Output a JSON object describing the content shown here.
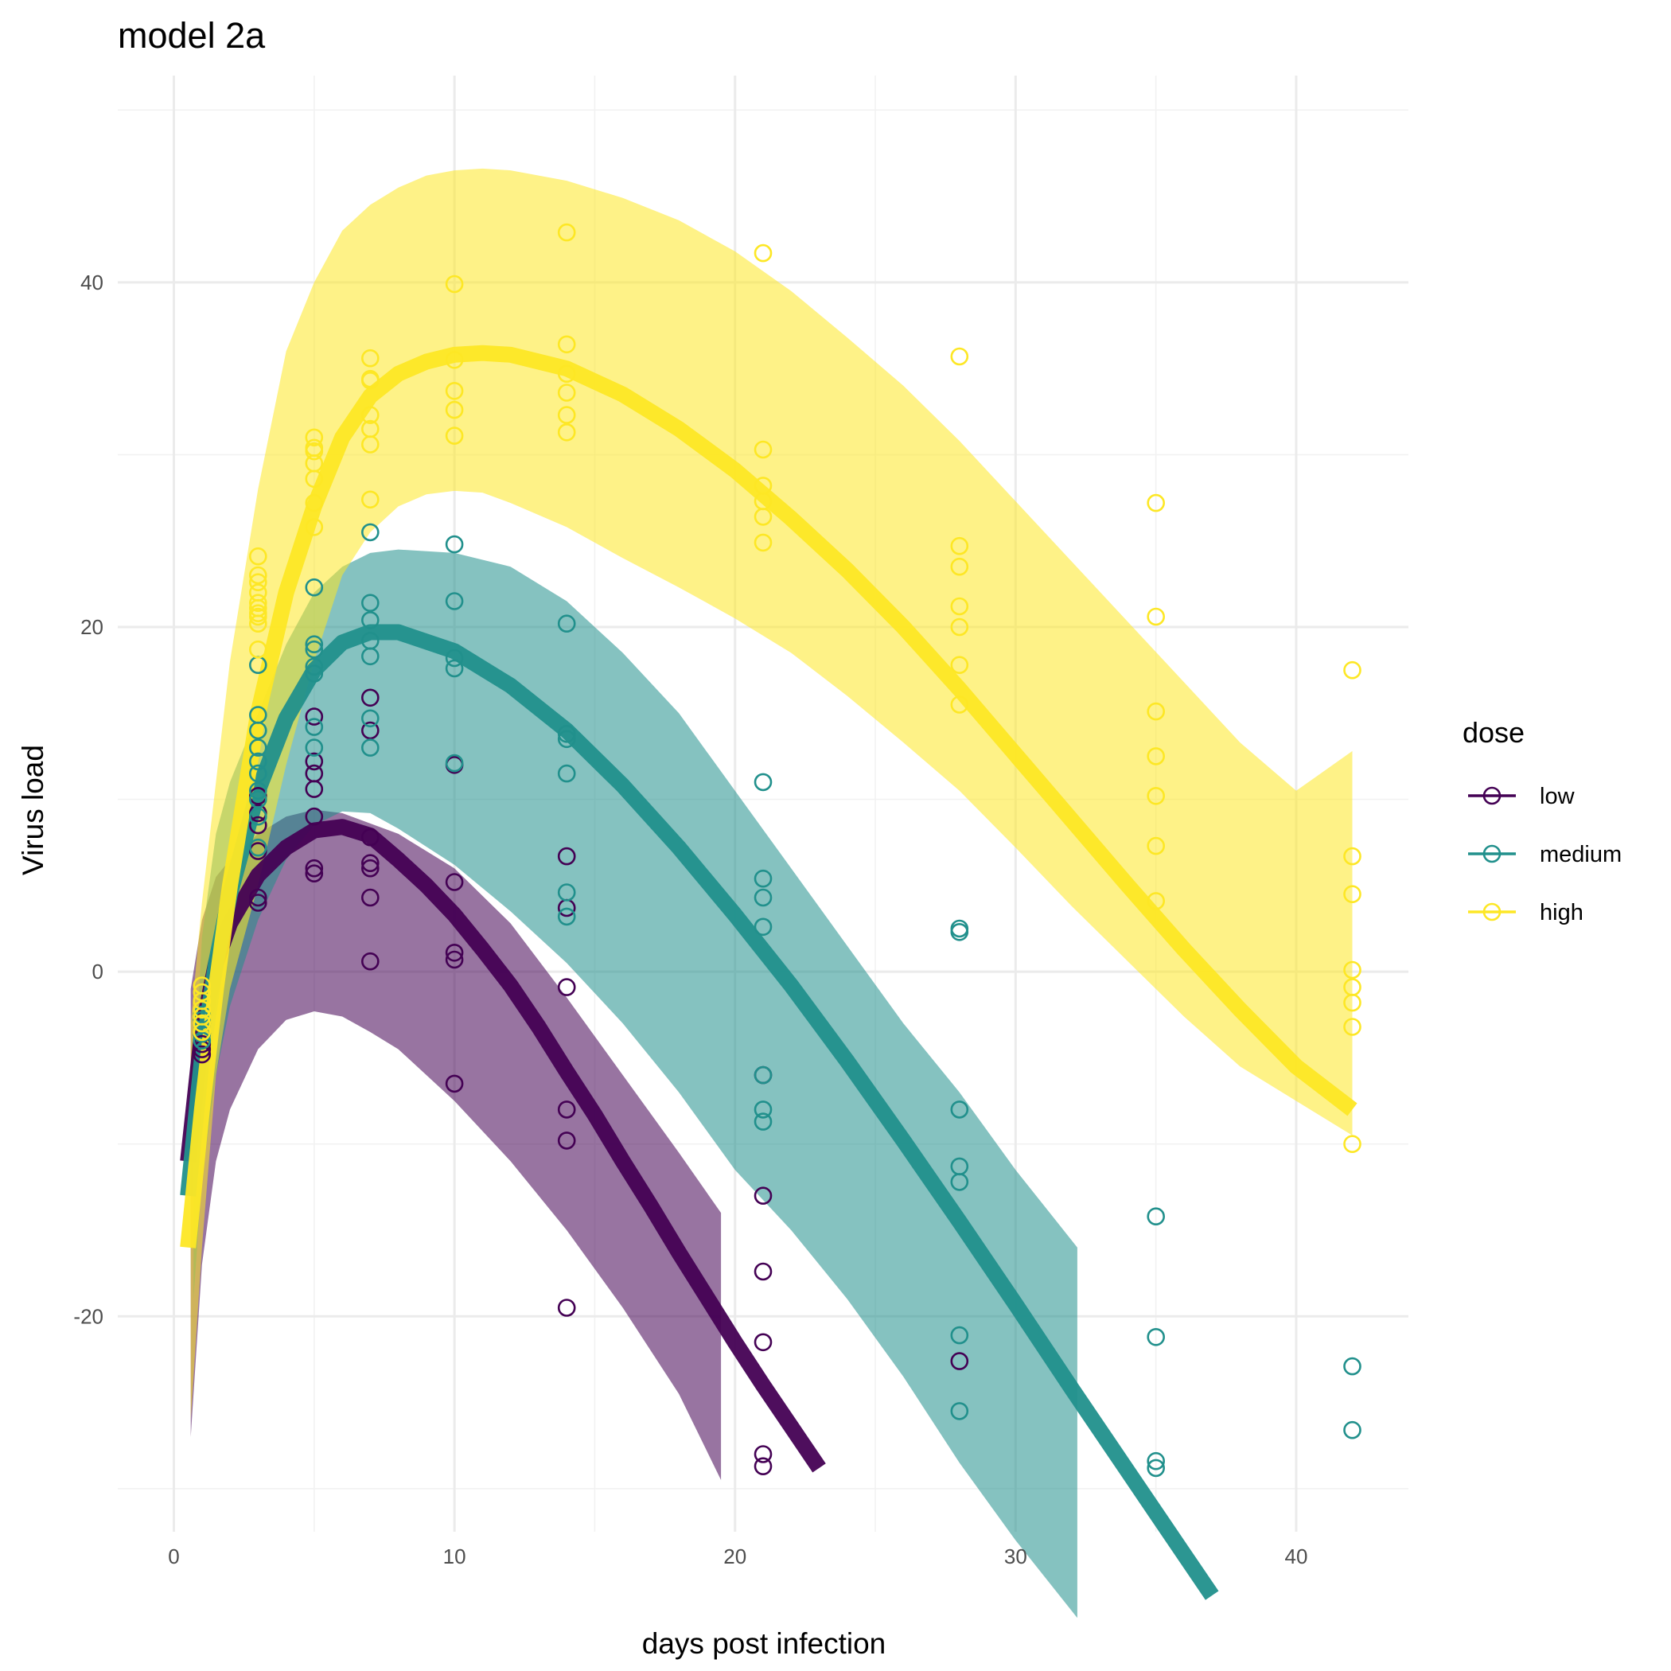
{
  "chart_data": {
    "type": "line",
    "title": "model 2a",
    "xlabel": "days post infection",
    "ylabel": "Virus load",
    "xlim": [
      -2,
      44
    ],
    "ylim": [
      -32.5,
      52
    ],
    "x_ticks": [
      0,
      10,
      20,
      30,
      40
    ],
    "y_ticks": [
      -20,
      0,
      20,
      40
    ],
    "x_tick_labels": [
      "0",
      "10",
      "20",
      "30",
      "40"
    ],
    "y_tick_labels": [
      "-20",
      "0",
      "20",
      "40"
    ],
    "grid": true,
    "legend": {
      "title": "dose",
      "position": "right"
    },
    "series": [
      {
        "name": "low",
        "color": "#440154",
        "fit": {
          "x": [
            0.5,
            1,
            1.5,
            2,
            3,
            4,
            5,
            6,
            7,
            8,
            9,
            10,
            11,
            12,
            13,
            14,
            15,
            16,
            17,
            18,
            19,
            20,
            21,
            22,
            23
          ],
          "y": [
            -11,
            -3.5,
            0.5,
            2.8,
            5.6,
            7.2,
            8.2,
            8.4,
            7.9,
            6.5,
            5,
            3.3,
            1.3,
            -0.8,
            -3.2,
            -5.8,
            -8.3,
            -11,
            -13.6,
            -16.3,
            -18.9,
            -21.5,
            -24,
            -26.4,
            -28.8
          ]
        },
        "ribbon_outer": {
          "x": [
            0.6,
            1,
            1.5,
            2,
            3,
            4,
            5,
            6,
            7,
            8,
            10,
            12,
            14,
            16,
            18,
            19.5
          ],
          "lower": [
            -27,
            -17,
            -11,
            -8,
            -4.5,
            -2.8,
            -2.3,
            -2.6,
            -3.5,
            -4.5,
            -7.5,
            -11,
            -15,
            -19.5,
            -24.5,
            -29.5
          ],
          "upper": [
            -1,
            3,
            5.5,
            6.5,
            8,
            9,
            9.4,
            9.2,
            8.6,
            8,
            6,
            2.8,
            -1.5,
            -6,
            -10.5,
            -14
          ]
        },
        "points": {
          "x": [
            1,
            1,
            1,
            1,
            3,
            3,
            3,
            3,
            3,
            3,
            5,
            5,
            5,
            5,
            5,
            5,
            5,
            7,
            7,
            7,
            7,
            7,
            7,
            7,
            10,
            10,
            10,
            10,
            10,
            14,
            14,
            14,
            14,
            14,
            14,
            21,
            21,
            21,
            21,
            21,
            21,
            28
          ],
          "y": [
            -4.8,
            -4.5,
            -4.2,
            -3.6,
            4,
            4.3,
            7,
            8.5,
            9.2,
            10.2,
            5.7,
            6,
            9,
            10.6,
            11.5,
            12.2,
            14.8,
            0.6,
            4.3,
            6,
            6.3,
            7.8,
            14,
            15.9,
            -6.5,
            0.7,
            1.1,
            5.2,
            12,
            -19.5,
            -9.8,
            -8,
            -0.9,
            3.7,
            6.7,
            -28.7,
            -28,
            -21.5,
            -17.4,
            -13,
            -6,
            -22.6
          ]
        }
      },
      {
        "name": "medium",
        "color": "#21908C",
        "fit": {
          "x": [
            0.5,
            1,
            1.5,
            2,
            3,
            4,
            5,
            6,
            7,
            8,
            10,
            12,
            14,
            16,
            18,
            20,
            22,
            24,
            26,
            28,
            30,
            32,
            34,
            36,
            37
          ],
          "y": [
            -13,
            -5,
            0.5,
            4.5,
            10.5,
            14.7,
            17.5,
            19.1,
            19.7,
            19.7,
            18.6,
            16.6,
            14,
            10.8,
            7.2,
            3.3,
            -0.8,
            -5.2,
            -9.8,
            -14.5,
            -19.3,
            -24.2,
            -29,
            -33.8,
            -36.2
          ]
        },
        "ribbon_outer": {
          "x": [
            0.7,
            1,
            1.5,
            2,
            3,
            4,
            5,
            6,
            7,
            8,
            10,
            12,
            14,
            16,
            18,
            20,
            22,
            24,
            26,
            28,
            30,
            32.2
          ],
          "lower": [
            -19,
            -12,
            -6,
            -2,
            3,
            6.5,
            8.5,
            9.3,
            9.2,
            8.3,
            6.2,
            3.5,
            0.5,
            -3,
            -7,
            -11.5,
            -15,
            -19,
            -23.5,
            -28.5,
            -33,
            -37.5
          ],
          "upper": [
            -7,
            2,
            8,
            11,
            15,
            19,
            22,
            23.5,
            24.3,
            24.5,
            24.3,
            23.5,
            21.5,
            18.5,
            15,
            10.5,
            6,
            1.5,
            -3,
            -7,
            -11.5,
            -16
          ]
        },
        "points": {
          "x": [
            1,
            1,
            1,
            1,
            1,
            3,
            3,
            3,
            3,
            3,
            3,
            3,
            3,
            3,
            3,
            5,
            5,
            5,
            5,
            5,
            5,
            5,
            7,
            7,
            7,
            7,
            7,
            7,
            7,
            10,
            10,
            10,
            10,
            10,
            14,
            14,
            14,
            14,
            14,
            14,
            21,
            21,
            21,
            21,
            21,
            21,
            21,
            28,
            28,
            28,
            28,
            28,
            28,
            28,
            35,
            35,
            35,
            35,
            42,
            42
          ],
          "y": [
            -4,
            -3.6,
            -3,
            -2.8,
            -2.5,
            7.2,
            9,
            10,
            11.5,
            12.2,
            13,
            14,
            14.9,
            17.8,
            10.5,
            13,
            14.2,
            17.3,
            18.7,
            19,
            22.3,
            17.7,
            13,
            14.7,
            18.3,
            20.4,
            21.4,
            25.5,
            19.2,
            12.1,
            17.6,
            18.2,
            21.5,
            24.8,
            3.2,
            4.6,
            11.5,
            13.5,
            20.2,
            13.8,
            -8.7,
            -8,
            -6,
            2.6,
            4.3,
            5.4,
            11,
            -25.5,
            -21.1,
            -12.2,
            -11.3,
            -8,
            2.3,
            2.5,
            -28.8,
            -28.4,
            -21.2,
            -14.2,
            -26.6,
            -22.9
          ]
        }
      },
      {
        "name": "high",
        "color": "#FDE725",
        "fit": {
          "x": [
            0.5,
            1,
            1.5,
            2,
            3,
            4,
            5,
            6,
            7,
            8,
            9,
            10,
            11,
            12,
            14,
            16,
            18,
            20,
            22,
            24,
            26,
            28,
            30,
            32,
            34,
            36,
            38,
            40,
            42
          ],
          "y": [
            -16,
            -8,
            -1,
            5,
            15,
            22,
            27,
            31,
            33.4,
            34.7,
            35.4,
            35.8,
            35.9,
            35.8,
            35,
            33.5,
            31.5,
            29.1,
            26.3,
            23.3,
            20,
            16.4,
            12.6,
            8.8,
            5,
            1.3,
            -2.2,
            -5.5,
            -8
          ]
        },
        "ribbon_outer": {
          "x": [
            0.6,
            1,
            1.5,
            2,
            3,
            4,
            5,
            6,
            7,
            8,
            9,
            10,
            11,
            12,
            14,
            16,
            18,
            20,
            22,
            24,
            26,
            28,
            30,
            32,
            34,
            36,
            38,
            40,
            42
          ],
          "lower": [
            -26,
            -16,
            -6,
            -1,
            5,
            12,
            18,
            23,
            25.5,
            27,
            27.7,
            27.9,
            27.8,
            27.2,
            25.8,
            24,
            22.3,
            20.5,
            18.5,
            16,
            13.3,
            10.5,
            7.2,
            3.8,
            0.6,
            -2.6,
            -5.5,
            -7.5,
            -9.5
          ]
        },
        "ribbon_upper": {
          "x": [
            0.6,
            1,
            1.5,
            2,
            3,
            4,
            5,
            6,
            7,
            8,
            9,
            10,
            11,
            12,
            14,
            16,
            18,
            20,
            22,
            24,
            26,
            28,
            30,
            32,
            34,
            36,
            38,
            40,
            42
          ],
          "upper": [
            -3,
            4,
            11,
            18,
            28,
            36,
            40,
            43,
            44.5,
            45.5,
            46.2,
            46.5,
            46.6,
            46.5,
            45.9,
            44.9,
            43.6,
            41.8,
            39.5,
            36.8,
            34,
            30.8,
            27.3,
            23.8,
            20.3,
            16.8,
            13.3,
            10.5,
            12.8
          ]
        },
        "points": {
          "x": [
            1,
            1,
            1,
            1,
            1,
            1,
            1,
            3,
            3,
            3,
            3,
            3,
            3,
            3,
            3,
            3,
            3,
            5,
            5,
            5,
            5,
            5,
            5,
            5,
            7,
            7,
            7,
            7,
            7,
            7,
            7,
            10,
            10,
            10,
            10,
            10,
            14,
            14,
            14,
            14,
            14,
            14,
            21,
            21,
            21,
            21,
            21,
            21,
            28,
            28,
            28,
            28,
            28,
            28,
            28,
            35,
            35,
            35,
            35,
            35,
            35,
            35,
            42,
            42,
            42,
            42,
            42,
            42,
            42,
            42
          ],
          "y": [
            -3.5,
            -3,
            -2.6,
            -2.2,
            -1.7,
            -1.2,
            -0.8,
            18.7,
            20.2,
            20.8,
            21.4,
            22,
            22.6,
            24.1,
            20.6,
            23,
            21.1,
            25.8,
            27.2,
            28.6,
            29.5,
            30.2,
            31,
            30.4,
            27.4,
            30.6,
            31.5,
            32.3,
            34.4,
            35.6,
            34.3,
            31.1,
            32.6,
            33.7,
            35.5,
            39.9,
            31.3,
            32.3,
            33.6,
            34.7,
            36.4,
            42.9,
            24.9,
            26.4,
            27.3,
            28.2,
            30.3,
            41.7,
            15.5,
            17.8,
            20,
            21.2,
            23.5,
            24.7,
            35.7,
            4.1,
            7.3,
            10.2,
            12.5,
            15.1,
            20.6,
            27.2,
            -10,
            -3.2,
            -1.8,
            -0.9,
            0.1,
            4.5,
            6.7,
            17.5
          ]
        }
      }
    ]
  }
}
